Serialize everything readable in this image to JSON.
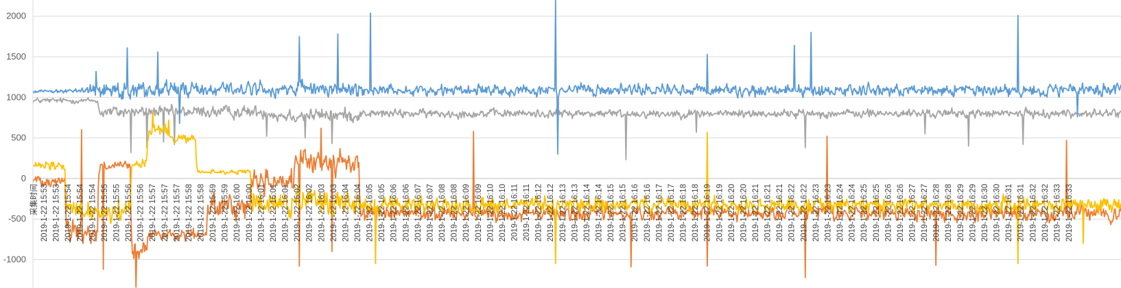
{
  "chart_data": {
    "type": "line",
    "title": "",
    "xlabel": "采集时间",
    "ylabel": "",
    "ylim": [
      -1350,
      2200
    ],
    "yticks": [
      -1000,
      -500,
      0,
      500,
      1000,
      1500,
      2000
    ],
    "legend": "none",
    "grid": true,
    "x_tick_labels": [
      "2019-1-22 15:53",
      "2019-1-22 15:53",
      "2019-1-22 15:54",
      "2019-1-22 15:54",
      "2019-1-22 15:54",
      "2019-1-22 15:55",
      "2019-1-22 15:55",
      "2019-1-22 15:56",
      "2019-1-22 15:56",
      "2019-1-22 15:57",
      "2019-1-22 15:57",
      "2019-1-22 15:57",
      "2019-1-22 15:58",
      "2019-1-22 15:58",
      "2019-1-22 15:59",
      "2019-1-22 15:59",
      "2019-1-22 16:00",
      "2019-1-22 16:00",
      "2019-1-22 16:01",
      "2019-1-22 16:01",
      "2019-1-22 16:01",
      "2019-1-22 16:02",
      "2019-1-22 16:02",
      "2019-1-22 16:03",
      "2019-1-22 16:03",
      "2019-1-22 16:04",
      "2019-1-22 16:04",
      "2019-1-22 16:05",
      "2019-1-22 16:05",
      "2019-1-22 16:06",
      "2019-1-22 16:06",
      "2019-1-22 16:07",
      "2019-1-22 16:07",
      "2019-1-22 16:08",
      "2019-1-22 16:08",
      "2019-1-22 16:09",
      "2019-1-22 16:09",
      "2019-1-22 16:10",
      "2019-1-22 16:10",
      "2019-1-22 16:11",
      "2019-1-22 16:11",
      "2019-1-22 16:12",
      "2019-1-22 16:12",
      "2019-1-22 16:13",
      "2019-1-22 16:13",
      "2019-1-22 16:14",
      "2019-1-22 16:14",
      "2019-1-22 16:15",
      "2019-1-22 16:15",
      "2019-1-22 16:16",
      "2019-1-22 16:16",
      "2019-1-22 16:17",
      "2019-1-22 16:17",
      "2019-1-22 16:18",
      "2019-1-22 16:18",
      "2019-1-22 16:19",
      "2019-1-22 16:19",
      "2019-1-22 16:20",
      "2019-1-22 16:20",
      "2019-1-22 16:21",
      "2019-1-22 16:21",
      "2019-1-22 16:21",
      "2019-1-22 16:22",
      "2019-1-22 16:22",
      "2019-1-22 16:23",
      "2019-1-22 16:23",
      "2019-1-22 16:24",
      "2019-1-22 16:24",
      "2019-1-22 16:25",
      "2019-1-22 16:25",
      "2019-1-22 16:26",
      "2019-1-22 16:26",
      "2019-1-22 16:27",
      "2019-1-22 16:27",
      "2019-1-22 16:28",
      "2019-1-22 16:28",
      "2019-1-22 16:29",
      "2019-1-22 16:29",
      "2019-1-22 16:30",
      "2019-1-22 16:30",
      "2019-1-22 16:31",
      "2019-1-22 16:31",
      "2019-1-22 16:32",
      "2019-1-22 16:32",
      "2019-1-22 16:33",
      "2019-1-22 16:33"
    ],
    "series": [
      {
        "color": "#a5a5a5",
        "segments": [
          {
            "from": 0.0,
            "to": 0.06,
            "base": 960,
            "noise": 70
          },
          {
            "from": 0.06,
            "to": 0.22,
            "base": 820,
            "noise": 160
          },
          {
            "from": 0.22,
            "to": 0.3,
            "base": 780,
            "noise": 180
          },
          {
            "from": 0.3,
            "to": 1.0,
            "base": 800,
            "noise": 110
          }
        ],
        "spikes": [
          [
            0.09,
            320
          ],
          [
            0.105,
            380
          ],
          [
            0.12,
            450
          ],
          [
            0.13,
            420
          ],
          [
            0.215,
            520
          ],
          [
            0.25,
            500
          ],
          [
            0.275,
            430
          ],
          [
            0.545,
            230
          ],
          [
            0.61,
            570
          ],
          [
            0.71,
            380
          ],
          [
            0.82,
            550
          ],
          [
            0.86,
            400
          ],
          [
            0.91,
            420
          ]
        ]
      },
      {
        "color": "#ed7d31",
        "segments": [
          {
            "from": 0.0,
            "to": 0.03,
            "base": -20,
            "noise": 150
          },
          {
            "from": 0.03,
            "to": 0.06,
            "base": -650,
            "noise": 350
          },
          {
            "from": 0.06,
            "to": 0.09,
            "base": 150,
            "noise": 140
          },
          {
            "from": 0.09,
            "to": 0.105,
            "base": -900,
            "noise": 280
          },
          {
            "from": 0.105,
            "to": 0.16,
            "base": -700,
            "noise": 140
          },
          {
            "from": 0.16,
            "to": 0.2,
            "base": -350,
            "noise": 300
          },
          {
            "from": 0.2,
            "to": 0.24,
            "base": -20,
            "noise": 330
          },
          {
            "from": 0.24,
            "to": 0.3,
            "base": 200,
            "noise": 280
          },
          {
            "from": 0.3,
            "to": 1.0,
            "base": -430,
            "noise": 200
          }
        ],
        "spikes": [
          [
            0.045,
            600
          ],
          [
            0.065,
            -1120
          ],
          [
            0.095,
            -1340
          ],
          [
            0.245,
            -1080
          ],
          [
            0.265,
            620
          ],
          [
            0.275,
            -900
          ],
          [
            0.405,
            580
          ],
          [
            0.48,
            -700
          ],
          [
            0.55,
            -1090
          ],
          [
            0.62,
            -1080
          ],
          [
            0.71,
            -1220
          ],
          [
            0.73,
            520
          ],
          [
            0.83,
            -1070
          ],
          [
            0.95,
            470
          ]
        ]
      },
      {
        "color": "#ffc000",
        "segments": [
          {
            "from": 0.0,
            "to": 0.03,
            "base": 150,
            "noise": 120
          },
          {
            "from": 0.03,
            "to": 0.09,
            "base": -400,
            "noise": 320
          },
          {
            "from": 0.09,
            "to": 0.105,
            "base": 200,
            "noise": 150
          },
          {
            "from": 0.105,
            "to": 0.125,
            "base": 600,
            "noise": 180
          },
          {
            "from": 0.125,
            "to": 0.15,
            "base": 480,
            "noise": 120
          },
          {
            "from": 0.15,
            "to": 0.2,
            "base": 80,
            "noise": 60
          },
          {
            "from": 0.2,
            "to": 0.3,
            "base": -300,
            "noise": 380
          },
          {
            "from": 0.3,
            "to": 1.0,
            "base": -330,
            "noise": 210
          }
        ],
        "spikes": [
          [
            0.11,
            830
          ],
          [
            0.125,
            720
          ],
          [
            0.315,
            -1050
          ],
          [
            0.48,
            -1050
          ],
          [
            0.62,
            570
          ],
          [
            0.905,
            -1050
          ],
          [
            0.965,
            -800
          ]
        ]
      },
      {
        "color": "#5b9bd5",
        "segments": [
          {
            "from": 0.0,
            "to": 0.05,
            "base": 1080,
            "noise": 60
          },
          {
            "from": 0.05,
            "to": 0.3,
            "base": 1100,
            "noise": 200
          },
          {
            "from": 0.3,
            "to": 1.0,
            "base": 1090,
            "noise": 150
          }
        ],
        "spikes": [
          [
            0.058,
            1320
          ],
          [
            0.087,
            1610
          ],
          [
            0.115,
            1560
          ],
          [
            0.135,
            680
          ],
          [
            0.245,
            1750
          ],
          [
            0.28,
            1780
          ],
          [
            0.31,
            2040
          ],
          [
            0.48,
            2200
          ],
          [
            0.482,
            300
          ],
          [
            0.62,
            1530
          ],
          [
            0.7,
            1640
          ],
          [
            0.715,
            1800
          ],
          [
            0.905,
            2010
          ],
          [
            0.96,
            760
          ]
        ]
      }
    ]
  }
}
